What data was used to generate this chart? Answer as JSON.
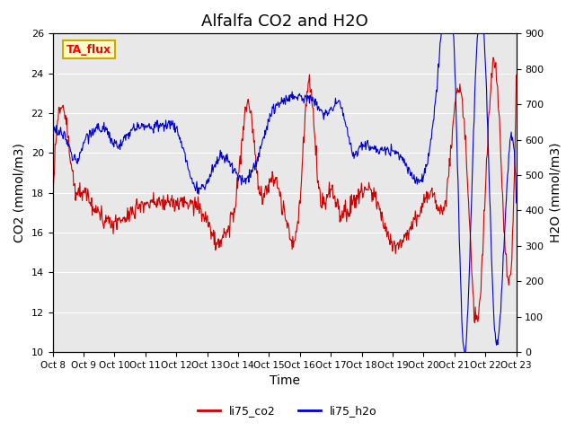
{
  "title": "Alfalfa CO2 and H2O",
  "xlabel": "Time",
  "ylabel_left": "CO2 (mmol/m3)",
  "ylabel_right": "H2O (mmol/m3)",
  "ylim_left": [
    10,
    26
  ],
  "ylim_right": [
    0,
    900
  ],
  "yticks_left": [
    10,
    12,
    14,
    16,
    18,
    20,
    22,
    24,
    26
  ],
  "yticks_right": [
    0,
    100,
    200,
    300,
    400,
    500,
    600,
    700,
    800,
    900
  ],
  "xtick_labels": [
    "Oct 8",
    "Oct 9",
    "Oct 10",
    "Oct 11",
    "Oct 12",
    "Oct 13",
    "Oct 14",
    "Oct 15",
    "Oct 16",
    "Oct 17",
    "Oct 18",
    "Oct 19",
    "Oct 20",
    "Oct 21",
    "Oct 22",
    "Oct 23"
  ],
  "color_co2": "#cc0000",
  "color_h2o": "#0000cc",
  "legend_labels": [
    "li75_co2",
    "li75_h2o"
  ],
  "annotation_text": "TA_flux",
  "annotation_bbox_facecolor": "#ffffcc",
  "annotation_bbox_edgecolor": "#ccaa00",
  "background_color": "#e8e8e8",
  "plot_bg_color": "#e8e8e8",
  "title_fontsize": 13,
  "axis_label_fontsize": 10
}
